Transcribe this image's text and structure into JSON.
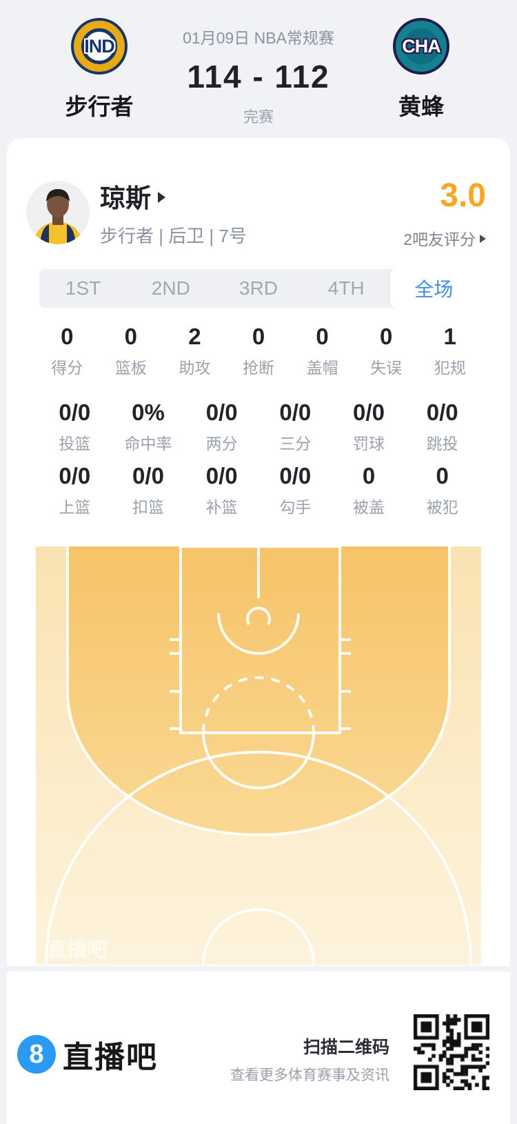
{
  "header": {
    "date_title": "01月09日 NBA常规赛",
    "score": "114 - 112",
    "status": "完赛",
    "home_team": {
      "abbr": "IND",
      "name": "步行者"
    },
    "away_team": {
      "abbr": "CHA",
      "name": "黄蜂"
    }
  },
  "player": {
    "name": "琼斯",
    "meta": "步行者 | 后卫 | 7号",
    "rating": "3.0",
    "rating_label": "2吧友评分"
  },
  "tabs": [
    {
      "name": "tab-1st",
      "label": "1ST",
      "active": false
    },
    {
      "name": "tab-2nd",
      "label": "2ND",
      "active": false
    },
    {
      "name": "tab-3rd",
      "label": "3RD",
      "active": false
    },
    {
      "name": "tab-4th",
      "label": "4TH",
      "active": false
    },
    {
      "name": "tab-full-game",
      "label": "全场",
      "active": true
    }
  ],
  "stats": {
    "row1": [
      {
        "name": "stat-points",
        "value": "0",
        "label": "得分"
      },
      {
        "name": "stat-rebounds",
        "value": "0",
        "label": "篮板"
      },
      {
        "name": "stat-assists",
        "value": "2",
        "label": "助攻"
      },
      {
        "name": "stat-steals",
        "value": "0",
        "label": "抢断"
      },
      {
        "name": "stat-blocks",
        "value": "0",
        "label": "盖帽"
      },
      {
        "name": "stat-turnovers",
        "value": "0",
        "label": "失误"
      },
      {
        "name": "stat-fouls",
        "value": "1",
        "label": "犯规"
      }
    ],
    "row2": [
      {
        "name": "stat-fg",
        "value": "0/0",
        "label": "投篮"
      },
      {
        "name": "stat-fg-pct",
        "value": "0%",
        "label": "命中率"
      },
      {
        "name": "stat-2pt",
        "value": "0/0",
        "label": "两分"
      },
      {
        "name": "stat-3pt",
        "value": "0/0",
        "label": "三分"
      },
      {
        "name": "stat-ft",
        "value": "0/0",
        "label": "罚球"
      },
      {
        "name": "stat-jumpshot",
        "value": "0/0",
        "label": "跳投"
      }
    ],
    "row3": [
      {
        "name": "stat-layup",
        "value": "0/0",
        "label": "上篮"
      },
      {
        "name": "stat-dunk",
        "value": "0/0",
        "label": "扣篮"
      },
      {
        "name": "stat-putback",
        "value": "0/0",
        "label": "补篮"
      },
      {
        "name": "stat-hook",
        "value": "0/0",
        "label": "勾手"
      },
      {
        "name": "stat-blocked",
        "value": "0",
        "label": "被盖"
      },
      {
        "name": "stat-fouled",
        "value": "0",
        "label": "被犯"
      }
    ]
  },
  "court": {
    "watermark": "直播吧"
  },
  "footer": {
    "brand_badge": "8",
    "brand_text": "直播吧",
    "scan_title": "扫描二维码",
    "scan_subtitle": "查看更多体育赛事及资讯"
  },
  "colors": {
    "accent_blue": "#3f8ce8",
    "rating_orange": "#f9a623",
    "page_bg": "#f1f2f6",
    "court_inner_top": "#f6c368",
    "court_inner_bottom": "#fad995",
    "court_outer_top": "#fae2b1",
    "court_outer_bottom": "#fdf3dc",
    "court_line": "#ffffff"
  }
}
